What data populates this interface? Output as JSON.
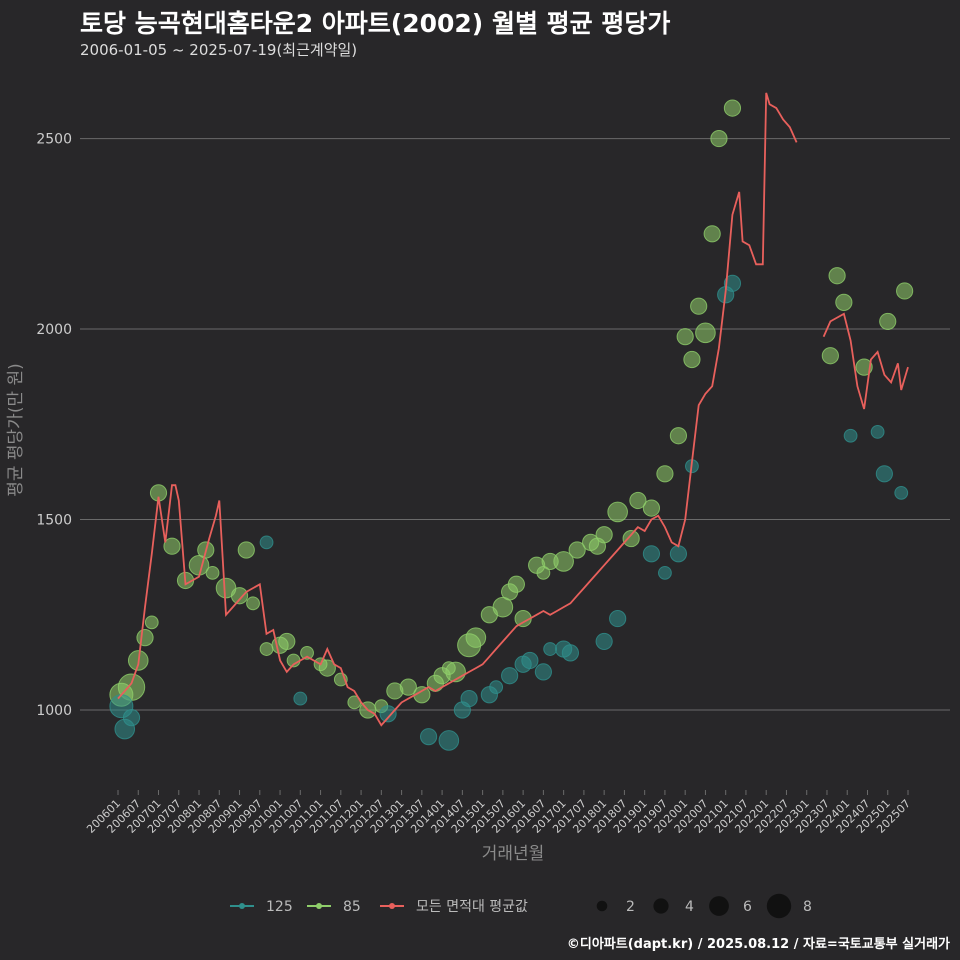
{
  "title": "토당 능곡현대홈타운2 아파트(2002) 월별 평균 평당가",
  "subtitle": "2006-01-05 ~ 2025-07-19(최근계약일)",
  "caption": "©디아파트(dapt.kr) / 2025.08.12 / 자료=국토교통부 실거래가",
  "colors": {
    "background": "#282729",
    "grid": "#6a6a6a",
    "s125": "#2f8f8c",
    "s85": "#8fce6a",
    "avg": "#e8605c",
    "text": "#cccccc"
  },
  "chart_data": {
    "type": "line",
    "title": "토당 능곡현대홈타운2 아파트(2002) 월별 평균 평당가",
    "xlabel": "거래년월",
    "ylabel": "평균 평당가(만 원)",
    "x_range": [
      "2006-01",
      "2025-07"
    ],
    "ylim": [
      790,
      2680
    ],
    "y_ticks": [
      1000,
      1500,
      2000,
      2500
    ],
    "x_ticks": [
      "200601",
      "200607",
      "200701",
      "200707",
      "200801",
      "200807",
      "200901",
      "200907",
      "201001",
      "201007",
      "201101",
      "201107",
      "201201",
      "201207",
      "201301",
      "201307",
      "201401",
      "201407",
      "201501",
      "201507",
      "201601",
      "201607",
      "201701",
      "201707",
      "201801",
      "201807",
      "201901",
      "201907",
      "202001",
      "202007",
      "202101",
      "202107",
      "202201",
      "202207",
      "202301",
      "202307",
      "202401",
      "202407",
      "202501",
      "202507"
    ],
    "grid": true,
    "legend": {
      "position": "bottom",
      "series_entries": [
        "125",
        "85",
        "모든 면적대 평균값"
      ],
      "size_entries": [
        2,
        4,
        6,
        8
      ]
    },
    "series": [
      {
        "name": "모든 면적대 평균값",
        "kind": "line",
        "points": [
          [
            "2006-01",
            1030
          ],
          [
            "2006-03",
            1050
          ],
          [
            "2006-05",
            1070
          ],
          [
            "2006-07",
            1120
          ],
          [
            "2006-09",
            1270
          ],
          [
            "2006-11",
            1410
          ],
          [
            "2007-01",
            1560
          ],
          [
            "2007-03",
            1440
          ],
          [
            "2007-05",
            1590
          ],
          [
            "2007-06",
            1590
          ],
          [
            "2007-07",
            1550
          ],
          [
            "2007-09",
            1330
          ],
          [
            "2007-11",
            1340
          ],
          [
            "2008-01",
            1350
          ],
          [
            "2008-04",
            1450
          ],
          [
            "2008-06",
            1510
          ],
          [
            "2008-07",
            1550
          ],
          [
            "2008-09",
            1250
          ],
          [
            "2008-11",
            1270
          ],
          [
            "2009-01",
            1290
          ],
          [
            "2009-03",
            1310
          ],
          [
            "2009-05",
            1320
          ],
          [
            "2009-07",
            1330
          ],
          [
            "2009-09",
            1200
          ],
          [
            "2009-11",
            1210
          ],
          [
            "2010-01",
            1130
          ],
          [
            "2010-03",
            1100
          ],
          [
            "2010-05",
            1120
          ],
          [
            "2010-07",
            1130
          ],
          [
            "2010-09",
            1140
          ],
          [
            "2010-11",
            1130
          ],
          [
            "2011-01",
            1120
          ],
          [
            "2011-03",
            1160
          ],
          [
            "2011-05",
            1120
          ],
          [
            "2011-07",
            1110
          ],
          [
            "2011-09",
            1060
          ],
          [
            "2011-11",
            1050
          ],
          [
            "2012-01",
            1020
          ],
          [
            "2012-03",
            1000
          ],
          [
            "2012-05",
            990
          ],
          [
            "2012-07",
            960
          ],
          [
            "2012-09",
            980
          ],
          [
            "2012-11",
            1000
          ],
          [
            "2013-01",
            1020
          ],
          [
            "2013-03",
            1030
          ],
          [
            "2013-05",
            1040
          ],
          [
            "2013-07",
            1050
          ],
          [
            "2013-09",
            1060
          ],
          [
            "2013-11",
            1050
          ],
          [
            "2014-01",
            1060
          ],
          [
            "2014-03",
            1070
          ],
          [
            "2014-05",
            1080
          ],
          [
            "2014-07",
            1090
          ],
          [
            "2014-09",
            1100
          ],
          [
            "2014-11",
            1110
          ],
          [
            "2015-01",
            1120
          ],
          [
            "2015-03",
            1140
          ],
          [
            "2015-05",
            1160
          ],
          [
            "2015-07",
            1180
          ],
          [
            "2015-09",
            1200
          ],
          [
            "2015-11",
            1220
          ],
          [
            "2016-01",
            1230
          ],
          [
            "2016-03",
            1240
          ],
          [
            "2016-05",
            1250
          ],
          [
            "2016-07",
            1260
          ],
          [
            "2016-09",
            1250
          ],
          [
            "2016-11",
            1260
          ],
          [
            "2017-01",
            1270
          ],
          [
            "2017-03",
            1280
          ],
          [
            "2017-05",
            1300
          ],
          [
            "2017-07",
            1320
          ],
          [
            "2017-09",
            1340
          ],
          [
            "2017-11",
            1360
          ],
          [
            "2018-01",
            1380
          ],
          [
            "2018-03",
            1400
          ],
          [
            "2018-05",
            1420
          ],
          [
            "2018-07",
            1440
          ],
          [
            "2018-09",
            1460
          ],
          [
            "2018-11",
            1480
          ],
          [
            "2019-01",
            1470
          ],
          [
            "2019-03",
            1500
          ],
          [
            "2019-05",
            1510
          ],
          [
            "2019-07",
            1480
          ],
          [
            "2019-09",
            1440
          ],
          [
            "2019-11",
            1430
          ],
          [
            "2020-01",
            1500
          ],
          [
            "2020-03",
            1650
          ],
          [
            "2020-05",
            1800
          ],
          [
            "2020-07",
            1830
          ],
          [
            "2020-09",
            1850
          ],
          [
            "2020-11",
            1950
          ],
          [
            "2021-01",
            2100
          ],
          [
            "2021-03",
            2300
          ],
          [
            "2021-05",
            2360
          ],
          [
            "2021-06",
            2230
          ],
          [
            "2021-08",
            2220
          ],
          [
            "2021-10",
            2170
          ],
          [
            "2021-12",
            2170
          ],
          [
            "2022-01",
            2620
          ],
          [
            "2022-02",
            2590
          ],
          [
            "2022-04",
            2580
          ],
          [
            "2022-06",
            2550
          ],
          [
            "2022-08",
            2530
          ],
          [
            "2022-10",
            2490
          ]
        ]
      },
      {
        "name": "모든 면적대 평균값",
        "kind": "line",
        "points": [
          [
            "2023-06",
            1980
          ],
          [
            "2023-08",
            2020
          ],
          [
            "2023-10",
            2030
          ],
          [
            "2023-12",
            2040
          ],
          [
            "2024-02",
            1970
          ],
          [
            "2024-04",
            1850
          ],
          [
            "2024-06",
            1790
          ],
          [
            "2024-08",
            1920
          ],
          [
            "2024-10",
            1940
          ],
          [
            "2024-12",
            1880
          ],
          [
            "2025-02",
            1860
          ],
          [
            "2025-04",
            1910
          ],
          [
            "2025-05",
            1840
          ],
          [
            "2025-07",
            1900
          ]
        ]
      },
      {
        "name": "85",
        "kind": "scatter",
        "points": [
          [
            "2006-02",
            1040,
            5
          ],
          [
            "2006-05",
            1060,
            6
          ],
          [
            "2006-07",
            1130,
            4
          ],
          [
            "2006-09",
            1190,
            3
          ],
          [
            "2006-11",
            1230,
            2
          ],
          [
            "2007-01",
            1570,
            3
          ],
          [
            "2007-05",
            1430,
            3
          ],
          [
            "2007-09",
            1340,
            3
          ],
          [
            "2008-01",
            1380,
            4
          ],
          [
            "2008-03",
            1420,
            3
          ],
          [
            "2008-05",
            1360,
            2
          ],
          [
            "2008-09",
            1320,
            4
          ],
          [
            "2009-01",
            1300,
            3
          ],
          [
            "2009-03",
            1420,
            3
          ],
          [
            "2009-05",
            1280,
            2
          ],
          [
            "2009-09",
            1160,
            2
          ],
          [
            "2010-01",
            1170,
            3
          ],
          [
            "2010-03",
            1180,
            3
          ],
          [
            "2010-05",
            1130,
            2
          ],
          [
            "2010-09",
            1150,
            2
          ],
          [
            "2011-01",
            1120,
            2
          ],
          [
            "2011-03",
            1110,
            3
          ],
          [
            "2011-07",
            1080,
            2
          ],
          [
            "2011-11",
            1020,
            2
          ],
          [
            "2012-03",
            1000,
            3
          ],
          [
            "2012-07",
            1010,
            2
          ],
          [
            "2012-11",
            1050,
            3
          ],
          [
            "2013-03",
            1060,
            3
          ],
          [
            "2013-07",
            1040,
            3
          ],
          [
            "2013-11",
            1070,
            3
          ],
          [
            "2014-01",
            1090,
            3
          ],
          [
            "2014-03",
            1110,
            2
          ],
          [
            "2014-05",
            1100,
            4
          ],
          [
            "2014-09",
            1170,
            5
          ],
          [
            "2014-11",
            1190,
            4
          ],
          [
            "2015-03",
            1250,
            3
          ],
          [
            "2015-07",
            1270,
            4
          ],
          [
            "2015-09",
            1310,
            3
          ],
          [
            "2015-11",
            1330,
            3
          ],
          [
            "2016-01",
            1240,
            3
          ],
          [
            "2016-05",
            1380,
            3
          ],
          [
            "2016-07",
            1360,
            2
          ],
          [
            "2016-09",
            1390,
            3
          ],
          [
            "2017-01",
            1390,
            4
          ],
          [
            "2017-05",
            1420,
            3
          ],
          [
            "2017-09",
            1440,
            3
          ],
          [
            "2017-11",
            1430,
            3
          ],
          [
            "2018-01",
            1460,
            3
          ],
          [
            "2018-05",
            1520,
            4
          ],
          [
            "2018-09",
            1450,
            3
          ],
          [
            "2018-11",
            1550,
            3
          ],
          [
            "2019-03",
            1530,
            3
          ],
          [
            "2019-07",
            1620,
            3
          ],
          [
            "2019-11",
            1720,
            3
          ],
          [
            "2020-01",
            1980,
            3
          ],
          [
            "2020-03",
            1920,
            3
          ],
          [
            "2020-05",
            2060,
            3
          ],
          [
            "2020-07",
            1990,
            4
          ],
          [
            "2020-09",
            2250,
            3
          ],
          [
            "2020-11",
            2500,
            3
          ],
          [
            "2021-03",
            2580,
            3
          ],
          [
            "2023-08",
            1930,
            3
          ],
          [
            "2023-10",
            2140,
            3
          ],
          [
            "2023-12",
            2070,
            3
          ],
          [
            "2024-06",
            1900,
            3
          ],
          [
            "2025-01",
            2020,
            3
          ],
          [
            "2025-06",
            2100,
            3
          ]
        ]
      },
      {
        "name": "125",
        "kind": "scatter",
        "points": [
          [
            "2006-02",
            1010,
            5
          ],
          [
            "2006-03",
            950,
            4
          ],
          [
            "2006-05",
            980,
            3
          ],
          [
            "2009-09",
            1440,
            2
          ],
          [
            "2010-07",
            1030,
            2
          ],
          [
            "2012-09",
            990,
            3
          ],
          [
            "2013-09",
            930,
            3
          ],
          [
            "2014-03",
            920,
            4
          ],
          [
            "2014-07",
            1000,
            3
          ],
          [
            "2014-09",
            1030,
            3
          ],
          [
            "2015-03",
            1040,
            3
          ],
          [
            "2015-05",
            1060,
            2
          ],
          [
            "2015-09",
            1090,
            3
          ],
          [
            "2016-01",
            1120,
            3
          ],
          [
            "2016-03",
            1130,
            3
          ],
          [
            "2016-07",
            1100,
            3
          ],
          [
            "2016-09",
            1160,
            2
          ],
          [
            "2017-01",
            1160,
            3
          ],
          [
            "2017-03",
            1150,
            3
          ],
          [
            "2018-01",
            1180,
            3
          ],
          [
            "2018-05",
            1240,
            3
          ],
          [
            "2019-03",
            1410,
            3
          ],
          [
            "2019-07",
            1360,
            2
          ],
          [
            "2019-11",
            1410,
            3
          ],
          [
            "2020-03",
            1640,
            2
          ],
          [
            "2021-01",
            2090,
            3
          ],
          [
            "2021-03",
            2120,
            3
          ],
          [
            "2024-02",
            1720,
            2
          ],
          [
            "2024-10",
            1730,
            2
          ],
          [
            "2024-12",
            1620,
            3
          ],
          [
            "2025-05",
            1570,
            2
          ]
        ]
      }
    ]
  }
}
